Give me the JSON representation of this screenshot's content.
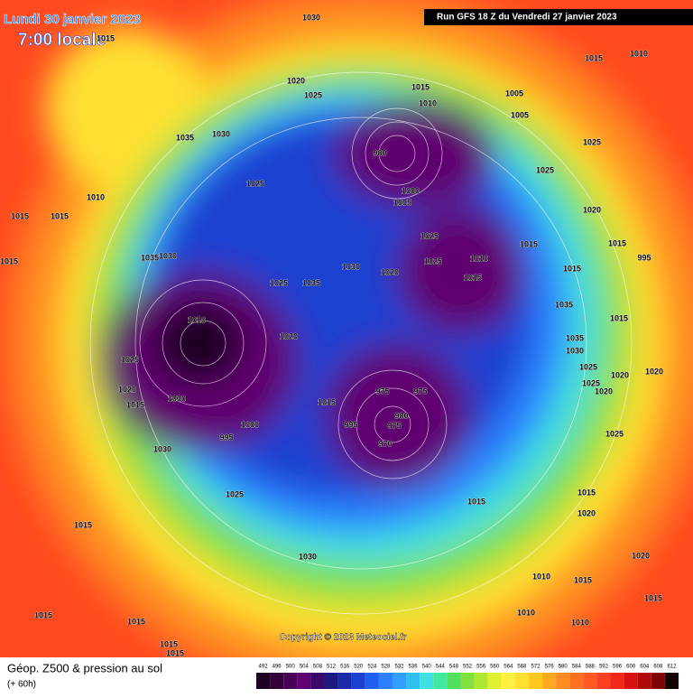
{
  "header": {
    "date": "Lundi 30 janvier 2023",
    "time": "7:00 locale",
    "run": "Run GFS 18 Z du Vendredi 27 janvier 2023"
  },
  "copyright": "Copyright © 2023 Meteociel.fr",
  "footer": {
    "title": "Géop. Z500 & pression au sol",
    "lead": "(+ 60h)"
  },
  "pressure_labels": [
    "1030",
    "1015",
    "1015",
    "1010",
    "1020",
    "1025",
    "1015",
    "1010",
    "1005",
    "1005",
    "1035",
    "1030",
    "1025",
    "1025",
    "1025",
    "1010",
    "1015",
    "1015",
    "1020",
    "1025",
    "1015",
    "1015",
    "995",
    "1030",
    "1035",
    "1010",
    "1025",
    "1015",
    "1030",
    "1020",
    "1015",
    "1015",
    "1025",
    "1035",
    "1035",
    "1015",
    "1020",
    "1035",
    "1030",
    "1025",
    "1025",
    "1020",
    "1020",
    "1020",
    "1030",
    "1015",
    "1015",
    "975",
    "975",
    "1025",
    "1020",
    "980",
    "975",
    "995",
    "1025",
    "970",
    "1030",
    "1025",
    "1015",
    "1015",
    "1020",
    "1015",
    "1030",
    "1020",
    "1010",
    "1015",
    "1010",
    "1015",
    "1015",
    "1015",
    "1010",
    "1015",
    "1015",
    "980",
    "1000",
    "1005",
    "1010",
    "1000",
    "995"
  ],
  "scale": {
    "values": [
      492,
      496,
      500,
      504,
      508,
      512,
      516,
      520,
      524,
      528,
      532,
      536,
      540,
      544,
      548,
      552,
      556,
      560,
      564,
      568,
      572,
      576,
      580,
      584,
      588,
      592,
      596,
      600,
      604,
      608,
      612
    ],
    "colors": [
      "#1e0024",
      "#34003a",
      "#4a0056",
      "#600070",
      "#3a0a6a",
      "#1e1a80",
      "#1a2aa8",
      "#1a40d0",
      "#2060f0",
      "#2a80ff",
      "#30a0ff",
      "#30c0f0",
      "#40e0e0",
      "#40e8a0",
      "#50e060",
      "#80e040",
      "#b0e830",
      "#e0f030",
      "#fff040",
      "#ffe030",
      "#ffc820",
      "#ffa820",
      "#ff8c20",
      "#ff7020",
      "#ff5820",
      "#ff4020",
      "#f02818",
      "#d81010",
      "#b00808",
      "#800404",
      "#100000"
    ]
  }
}
